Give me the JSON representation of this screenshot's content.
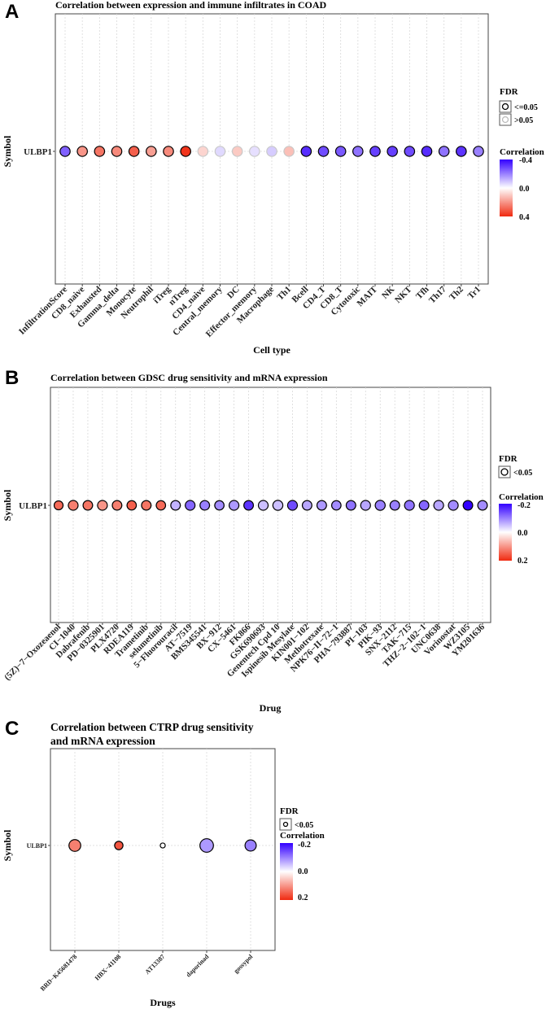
{
  "colors": {
    "negative": "#3300ff",
    "zero": "#ffffff",
    "positive": "#f02a10"
  },
  "chart_data": [
    {
      "id": "A",
      "type": "scatter",
      "panel_letter": "A",
      "title": "Correlation between expression and immune infiltrates in COAD",
      "xlabel": "Cell type",
      "ylabel": "Symbol",
      "y_categories": [
        "ULBP1"
      ],
      "categories": [
        "InfiltrationScore",
        "CD8_naive",
        "Exhausted",
        "Gamma_delta",
        "Monocyte",
        "Neutrophil",
        "iTreg",
        "nTreg",
        "CD4_naive",
        "Central_memory",
        "DC",
        "Effector_memory",
        "Macrophage",
        "Th1",
        "Bcell",
        "CD4_T",
        "CD8_T",
        "Cytotoxic",
        "MAIT",
        "NK",
        "NKT",
        "Tfh",
        "Th17",
        "Th2",
        "Tr1"
      ],
      "correlation": [
        -0.25,
        0.2,
        0.26,
        0.22,
        0.3,
        0.18,
        0.22,
        0.38,
        0.08,
        -0.06,
        0.1,
        -0.05,
        -0.08,
        0.12,
        -0.33,
        -0.28,
        -0.26,
        -0.22,
        -0.3,
        -0.3,
        -0.28,
        -0.33,
        -0.22,
        -0.32,
        -0.2
      ],
      "fdr_significant": [
        true,
        true,
        true,
        true,
        true,
        true,
        true,
        true,
        false,
        false,
        false,
        false,
        false,
        false,
        true,
        true,
        true,
        true,
        true,
        true,
        true,
        true,
        true,
        true,
        true
      ],
      "color_scale": {
        "min": -0.4,
        "max": 0.4,
        "ticks": [
          "-0.4",
          "0.0",
          "0.4"
        ]
      },
      "legend": {
        "fdr_title": "FDR",
        "fdr_labels": [
          "<=0.05",
          ">0.05"
        ],
        "corr_title": "Correlation",
        "placement": "right"
      }
    },
    {
      "id": "B",
      "type": "scatter",
      "panel_letter": "B",
      "title": "Correlation between GDSC drug sensitivity and mRNA expression",
      "xlabel": "Drug",
      "ylabel": "Symbol",
      "y_categories": [
        "ULBP1"
      ],
      "categories": [
        "(5Z)−7−Oxozeaenol",
        "CI−1040",
        "Dabrafenib",
        "PD−0325901",
        "PLX4720",
        "RDEA119",
        "Trametinib",
        "selumetinib",
        "5−Fluorouracil",
        "AT−7519",
        "BMS345541",
        "BX−912",
        "CX−5461",
        "FK866",
        "GSK690693",
        "Genentech Cpd 10",
        "Ispinesib Mesylate",
        "KIN001−102",
        "Methotrexate",
        "NPK76−II−72−1",
        "PHA−793887",
        "PI−103",
        "PIK−93",
        "SNX−2112",
        "TAK−715",
        "THZ−2−102−1",
        "UNC0638",
        "Vorinostat",
        "WZ3105",
        "YM201636"
      ],
      "correlation": [
        0.14,
        0.12,
        0.13,
        0.1,
        0.12,
        0.15,
        0.13,
        0.14,
        -0.06,
        -0.12,
        -0.1,
        -0.09,
        -0.08,
        -0.16,
        -0.05,
        -0.05,
        -0.14,
        -0.07,
        -0.08,
        -0.09,
        -0.11,
        -0.07,
        -0.1,
        -0.1,
        -0.11,
        -0.12,
        -0.07,
        -0.09,
        -0.2,
        -0.09
      ],
      "size_magnitude": [
        0.4,
        0.6,
        0.55,
        0.6,
        0.55,
        0.5,
        0.55,
        0.5,
        0.55,
        0.6,
        0.55,
        0.5,
        0.6,
        0.55,
        0.6,
        0.65,
        0.6,
        0.55,
        0.55,
        0.5,
        0.55,
        0.6,
        0.65,
        0.55,
        0.6,
        0.55,
        0.6,
        0.6,
        0.55,
        0.55
      ],
      "color_scale": {
        "min": -0.2,
        "max": 0.2,
        "ticks": [
          "-0.2",
          "0.0",
          "0.2"
        ]
      },
      "legend": {
        "fdr_title": "FDR",
        "fdr_labels": [
          "<0.05"
        ],
        "corr_title": "Correlation",
        "placement": "right"
      }
    },
    {
      "id": "C",
      "type": "scatter",
      "panel_letter": "C",
      "title_lines": [
        "Correlation between CTRP drug sensitivity",
        "and mRNA expression"
      ],
      "xlabel": "Drugs",
      "ylabel": "Symbol",
      "y_categories": [
        "ULBP1"
      ],
      "categories": [
        "BRD−K45681478",
        "HBX−41108",
        "AT13387",
        "daporinad",
        "gossypol"
      ],
      "correlation": [
        0.12,
        0.16,
        0.0,
        -0.08,
        -0.1
      ],
      "size_magnitude": [
        0.75,
        0.45,
        0.15,
        0.9,
        0.7
      ],
      "color_scale": {
        "min": -0.2,
        "max": 0.2,
        "ticks": [
          "-0.2",
          "0.0",
          "0.2"
        ]
      },
      "legend": {
        "fdr_title": "FDR",
        "fdr_labels": [
          "<0.05"
        ],
        "corr_title": "Correlation",
        "placement": "right"
      }
    }
  ]
}
